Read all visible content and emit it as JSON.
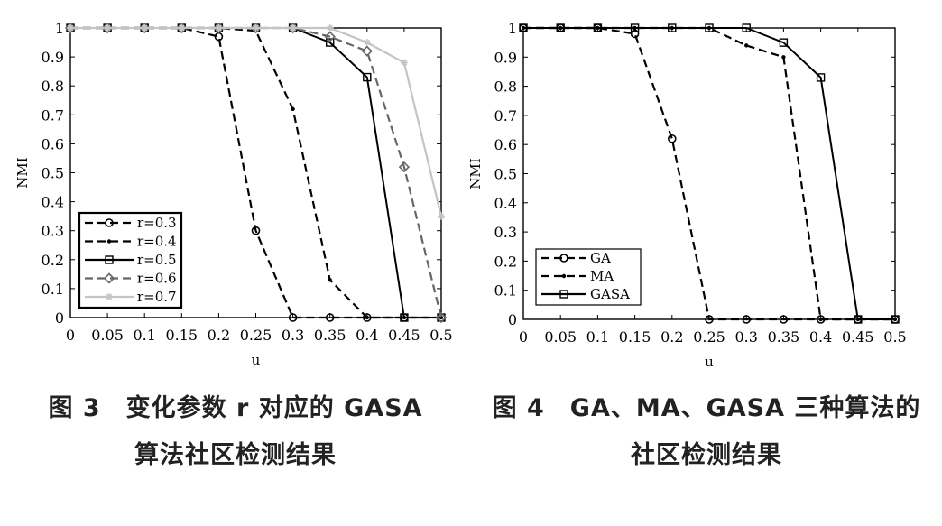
{
  "chart_data": [
    {
      "type": "line",
      "xlabel": "u",
      "ylabel": "NMI",
      "xlim": [
        0,
        0.5
      ],
      "ylim": [
        0,
        1
      ],
      "xticks": [
        "0",
        "0.05",
        "0.1",
        "0.15",
        "0.2",
        "0.25",
        "0.3",
        "0.35",
        "0.4",
        "0.45",
        "0.5"
      ],
      "yticks": [
        "0",
        "0.1",
        "0.2",
        "0.3",
        "0.4",
        "0.5",
        "0.6",
        "0.7",
        "0.8",
        "0.9",
        "1"
      ],
      "legend_position": "bottom-left",
      "x": [
        0,
        0.05,
        0.1,
        0.15,
        0.2,
        0.25,
        0.3,
        0.35,
        0.4,
        0.45,
        0.5
      ],
      "series": [
        {
          "name": "r=0.3",
          "values": [
            1,
            1,
            1,
            1,
            0.97,
            0.3,
            0,
            0,
            0,
            0,
            0
          ],
          "color": "#000000",
          "dash": "dashed",
          "marker": "circle"
        },
        {
          "name": "r=0.4",
          "values": [
            1,
            1,
            1,
            1,
            1,
            0.99,
            0.72,
            0.13,
            0,
            0,
            0
          ],
          "color": "#000000",
          "dash": "dashed",
          "marker": "dot"
        },
        {
          "name": "r=0.5",
          "values": [
            1,
            1,
            1,
            1,
            1,
            1,
            1,
            0.95,
            0.83,
            0,
            0
          ],
          "color": "#000000",
          "dash": "solid",
          "marker": "square"
        },
        {
          "name": "r=0.6",
          "values": [
            1,
            1,
            1,
            1,
            1,
            1,
            1,
            0.97,
            0.92,
            0.52,
            0
          ],
          "color": "#666666",
          "dash": "dashed",
          "marker": "diamond"
        },
        {
          "name": "r=0.7",
          "values": [
            1,
            1,
            1,
            1,
            1,
            1,
            1,
            1,
            0.95,
            0.88,
            0.35
          ],
          "color": "#c4c4c4",
          "dash": "solid",
          "marker": "star"
        }
      ]
    },
    {
      "type": "line",
      "xlabel": "u",
      "ylabel": "NMI",
      "xlim": [
        0,
        0.5
      ],
      "ylim": [
        0,
        1
      ],
      "xticks": [
        "0",
        "0.05",
        "0.1",
        "0.15",
        "0.2",
        "0.25",
        "0.3",
        "0.35",
        "0.4",
        "0.45",
        "0.5"
      ],
      "yticks": [
        "0",
        "0.1",
        "0.2",
        "0.3",
        "0.4",
        "0.5",
        "0.6",
        "0.7",
        "0.8",
        "0.9",
        "1"
      ],
      "legend_position": "bottom-left",
      "x": [
        0,
        0.05,
        0.1,
        0.15,
        0.2,
        0.25,
        0.3,
        0.35,
        0.4,
        0.45,
        0.5
      ],
      "series": [
        {
          "name": "GA",
          "values": [
            1,
            1,
            1,
            0.98,
            0.62,
            0,
            0,
            0,
            0,
            0,
            0
          ],
          "color": "#000000",
          "dash": "dashed",
          "marker": "circle"
        },
        {
          "name": "MA",
          "values": [
            1,
            1,
            1,
            1,
            1,
            1,
            0.94,
            0.9,
            0,
            0,
            0
          ],
          "color": "#000000",
          "dash": "dashed",
          "marker": "dot"
        },
        {
          "name": "GASA",
          "values": [
            1,
            1,
            1,
            1,
            1,
            1,
            1,
            0.95,
            0.83,
            0,
            0
          ],
          "color": "#000000",
          "dash": "solid",
          "marker": "square"
        }
      ]
    }
  ],
  "captions": {
    "fig3_line1": "图 3　变化参数 r 对应的 GASA",
    "fig3_line2": "算法社区检测结果",
    "fig4_line1": "图 4　GA、MA、GASA 三种算法的",
    "fig4_line2": "社区检测结果"
  }
}
